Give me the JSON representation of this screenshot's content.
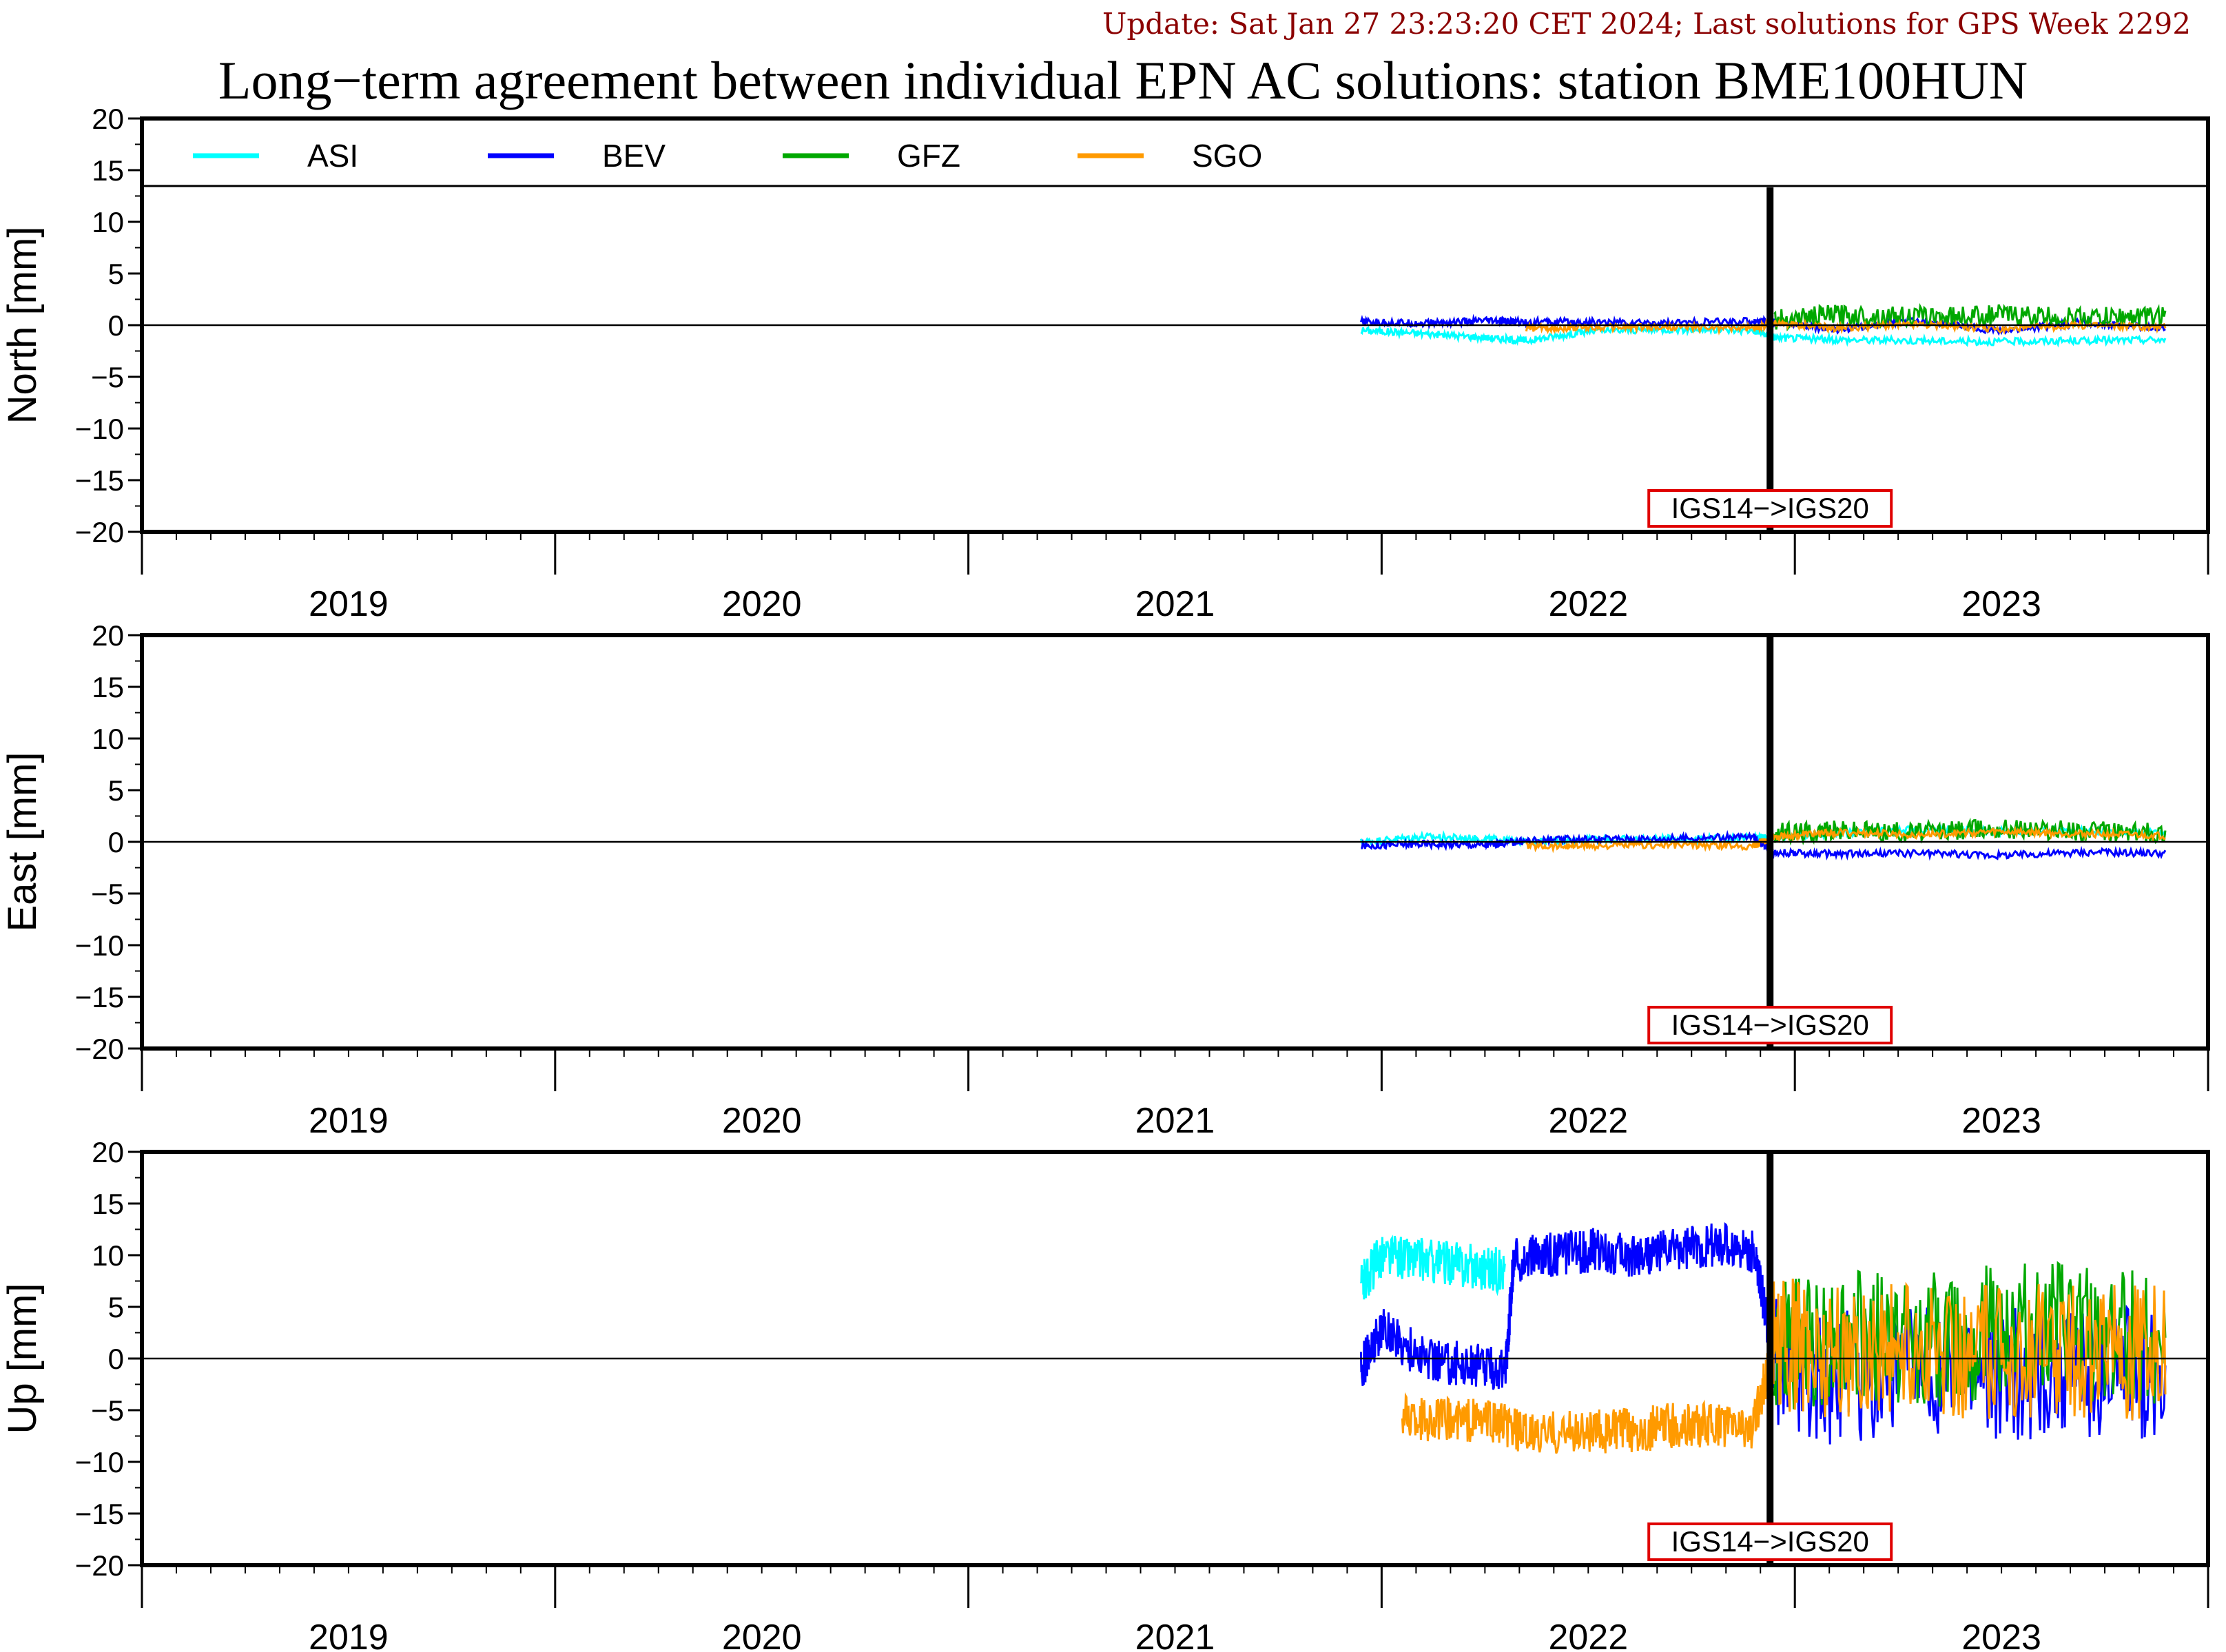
{
  "update_text": "Update: Sat Jan 27 23:23:20 CET 2024; Last solutions for GPS Week 2292",
  "chart_data": {
    "type": "line",
    "title": "Long−term agreement between individual EPN AC solutions: station BME100HUN",
    "legend": [
      {
        "name": "ASI",
        "color": "#00ffff"
      },
      {
        "name": "BEV",
        "color": "#0000ff"
      },
      {
        "name": "GFZ",
        "color": "#00a800"
      },
      {
        "name": "SGO",
        "color": "#ff9a00"
      }
    ],
    "legend_placement": "top-left",
    "x_range": [
      2019.0,
      2024.0
    ],
    "x_tick_labels": [
      "2019",
      "2020",
      "2021",
      "2022",
      "2023"
    ],
    "y_range": [
      -20,
      20
    ],
    "y_ticks": [
      20,
      15,
      10,
      5,
      0,
      -5,
      -10,
      -15,
      -20
    ],
    "y_tick_labels": [
      "20",
      "15",
      "10",
      "5",
      "0",
      "−5",
      "−10",
      "−15",
      "−20"
    ],
    "grid": false,
    "reference_frame_change": {
      "x": 2022.94,
      "label": "IGS14−>IGS20"
    },
    "panels": [
      {
        "ylabel": "North [mm]",
        "series": [
          {
            "name": "ASI",
            "color": "#00ffff",
            "x": [
              2021.95,
              2022.1,
              2022.25,
              2022.35,
              2022.5,
              2022.7,
              2022.9,
              2022.95,
              2023.1,
              2023.3,
              2023.5,
              2023.7,
              2023.9
            ],
            "y": [
              -0.5,
              -0.8,
              -1.2,
              -1.5,
              -0.6,
              -0.4,
              -0.5,
              -1.2,
              -1.4,
              -1.5,
              -1.6,
              -1.5,
              -1.4
            ]
          },
          {
            "name": "BEV",
            "color": "#0000ff",
            "x": [
              2021.95,
              2022.1,
              2022.25,
              2022.35,
              2022.5,
              2022.7,
              2022.9,
              2022.95,
              2023.1,
              2023.3,
              2023.5,
              2023.7,
              2023.9
            ],
            "y": [
              0.3,
              0.2,
              0.4,
              0.3,
              0.3,
              0.2,
              0.4,
              0.3,
              -0.5,
              0.5,
              -0.6,
              0.3,
              -0.4
            ]
          },
          {
            "name": "GFZ",
            "color": "#00a800",
            "x": [
              2022.95,
              2023.1,
              2023.3,
              2023.5,
              2023.7,
              2023.9
            ],
            "y": [
              0.5,
              1.0,
              0.8,
              1.0,
              0.7,
              0.9
            ]
          },
          {
            "name": "SGO",
            "color": "#ff9a00",
            "x": [
              2022.35,
              2022.5,
              2022.7,
              2022.9,
              2022.95,
              2023.1,
              2023.3,
              2023.5,
              2023.7,
              2023.9
            ],
            "y": [
              -0.3,
              -0.2,
              -0.2,
              -0.3,
              0.2,
              -0.3,
              0.1,
              -0.4,
              0.0,
              -0.2
            ]
          }
        ]
      },
      {
        "ylabel": "East [mm]",
        "series": [
          {
            "name": "ASI",
            "color": "#00ffff",
            "x": [
              2021.95,
              2022.1,
              2022.25,
              2022.35,
              2022.5,
              2022.7,
              2022.9,
              2022.95,
              2023.1,
              2023.3,
              2023.5,
              2023.7,
              2023.9
            ],
            "y": [
              0.0,
              0.5,
              0.3,
              0.0,
              0.2,
              0.3,
              0.4,
              0.5,
              0.8,
              1.2,
              1.0,
              1.1,
              0.9
            ]
          },
          {
            "name": "BEV",
            "color": "#0000ff",
            "x": [
              2021.95,
              2022.1,
              2022.25,
              2022.35,
              2022.5,
              2022.7,
              2022.9,
              2022.95,
              2023.1,
              2023.3,
              2023.5,
              2023.7,
              2023.9
            ],
            "y": [
              -0.4,
              -0.2,
              -0.3,
              0.1,
              0.3,
              0.3,
              0.5,
              -1.0,
              -1.2,
              -1.1,
              -1.3,
              -1.0,
              -1.1
            ]
          },
          {
            "name": "GFZ",
            "color": "#00a800",
            "x": [
              2022.95,
              2023.1,
              2023.3,
              2023.5,
              2023.7,
              2023.9
            ],
            "y": [
              0.8,
              1.1,
              0.9,
              1.3,
              1.0,
              0.8
            ]
          },
          {
            "name": "SGO",
            "color": "#ff9a00",
            "x": [
              2022.35,
              2022.5,
              2022.7,
              2022.9,
              2022.95,
              2023.1,
              2023.3,
              2023.5,
              2023.7,
              2023.9
            ],
            "y": [
              -0.4,
              -0.4,
              -0.3,
              -0.4,
              0.5,
              0.9,
              0.7,
              1.0,
              0.8,
              0.6
            ]
          }
        ]
      },
      {
        "ylabel": "Up [mm]",
        "series": [
          {
            "name": "ASI",
            "color": "#00ffff",
            "x": [
              2021.95,
              2022.0,
              2022.1,
              2022.2,
              2022.3
            ],
            "y": [
              7.0,
              10.0,
              9.5,
              9.0,
              8.5
            ]
          },
          {
            "name": "BEV",
            "color": "#0000ff",
            "x": [
              2021.95,
              2022.0,
              2022.1,
              2022.2,
              2022.3,
              2022.32,
              2022.4,
              2022.5,
              2022.6,
              2022.7,
              2022.8,
              2022.9,
              2022.95,
              2023.1,
              2023.3,
              2023.5,
              2023.7,
              2023.9
            ],
            "y": [
              -1.0,
              3.0,
              0.0,
              -0.5,
              -1.0,
              9.5,
              10.0,
              10.5,
              10.0,
              10.5,
              11.0,
              10.5,
              0.0,
              -2.0,
              -1.0,
              -1.5,
              -1.0,
              -2.0
            ]
          },
          {
            "name": "GFZ",
            "color": "#00a800",
            "x": [
              2022.95,
              2023.1,
              2023.3,
              2023.5,
              2023.7,
              2023.9
            ],
            "y": [
              1.0,
              2.0,
              1.5,
              3.0,
              2.5,
              1.5
            ]
          },
          {
            "name": "SGO",
            "color": "#ff9a00",
            "x": [
              2022.05,
              2022.15,
              2022.27,
              2022.35,
              2022.5,
              2022.6,
              2022.7,
              2022.8,
              2022.9,
              2022.95,
              2023.1,
              2023.3,
              2023.5,
              2023.7,
              2023.9
            ],
            "y": [
              -5.5,
              -6.0,
              -6.0,
              -7.5,
              -7.0,
              -7.0,
              -6.5,
              -6.5,
              -6.5,
              1.5,
              0.5,
              1.0,
              0.5,
              0.8,
              0.5
            ]
          }
        ]
      }
    ]
  }
}
